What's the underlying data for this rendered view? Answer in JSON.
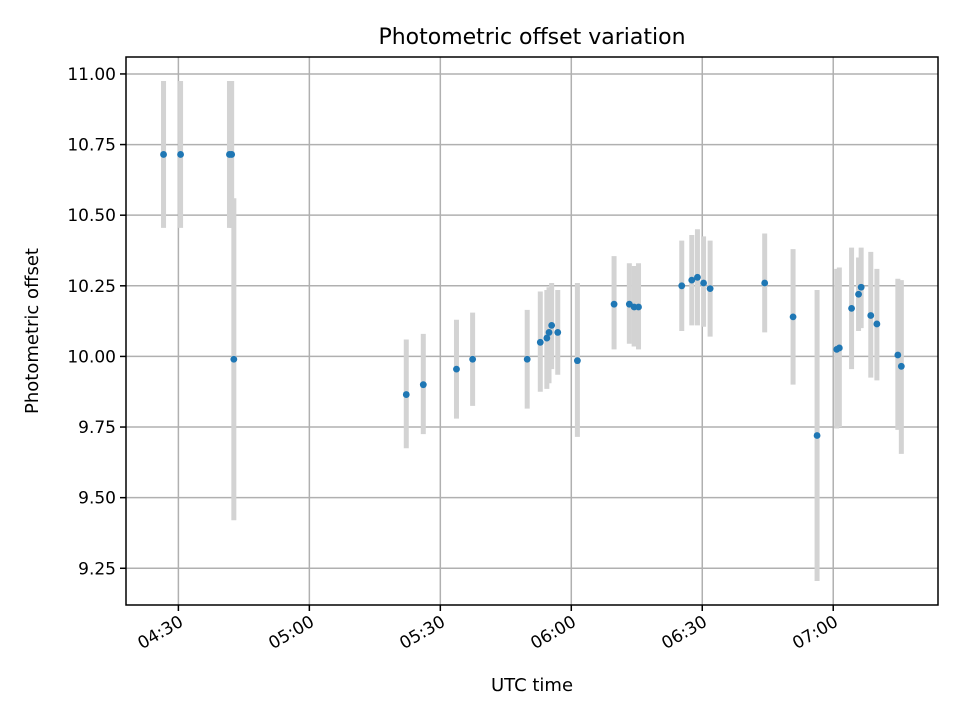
{
  "chart_data": {
    "type": "scatter",
    "title": "Photometric offset variation",
    "xlabel": "UTC time",
    "ylabel": "Photometric offset",
    "x_unit": "minutes_of_day",
    "xlim": [
      "04:18",
      "07:24"
    ],
    "ylim": [
      9.12,
      11.06
    ],
    "x_ticks": [
      "04:30",
      "05:00",
      "05:30",
      "06:00",
      "06:30",
      "07:00"
    ],
    "y_ticks": [
      "9.25",
      "9.50",
      "9.75",
      "10.00",
      "10.25",
      "10.50",
      "10.75",
      "11.00"
    ],
    "grid": true,
    "series": [
      {
        "color": "#1f77b4",
        "errorbar_color": "#d3d3d3",
        "points": [
          {
            "t": "04:26.6",
            "y": 10.715,
            "lo": 10.455,
            "hi": 10.975
          },
          {
            "t": "04:30.5",
            "y": 10.715,
            "lo": 10.455,
            "hi": 10.975
          },
          {
            "t": "04:41.7",
            "y": 10.715,
            "lo": 10.455,
            "hi": 10.975
          },
          {
            "t": "04:42.2",
            "y": 10.715,
            "lo": 10.455,
            "hi": 10.975
          },
          {
            "t": "04:42.7",
            "y": 9.99,
            "lo": 9.42,
            "hi": 10.56
          },
          {
            "t": "05:22.2",
            "y": 9.865,
            "lo": 9.675,
            "hi": 10.06
          },
          {
            "t": "05:26.1",
            "y": 9.9,
            "lo": 9.725,
            "hi": 10.08
          },
          {
            "t": "05:33.7",
            "y": 9.955,
            "lo": 9.78,
            "hi": 10.13
          },
          {
            "t": "05:37.4",
            "y": 9.99,
            "lo": 9.825,
            "hi": 10.155
          },
          {
            "t": "05:49.9",
            "y": 9.99,
            "lo": 9.815,
            "hi": 10.165
          },
          {
            "t": "05:52.9",
            "y": 10.05,
            "lo": 9.875,
            "hi": 10.23
          },
          {
            "t": "05:54.4",
            "y": 10.065,
            "lo": 9.885,
            "hi": 10.235
          },
          {
            "t": "05:54.9",
            "y": 10.085,
            "lo": 9.905,
            "hi": 10.245
          },
          {
            "t": "05:55.5",
            "y": 10.11,
            "lo": 9.955,
            "hi": 10.26
          },
          {
            "t": "05:56.9",
            "y": 10.085,
            "lo": 9.935,
            "hi": 10.235
          },
          {
            "t": "06:01.4",
            "y": 9.985,
            "lo": 9.715,
            "hi": 10.26
          },
          {
            "t": "06:09.8",
            "y": 10.185,
            "lo": 10.025,
            "hi": 10.355
          },
          {
            "t": "06:13.3",
            "y": 10.185,
            "lo": 10.045,
            "hi": 10.33
          },
          {
            "t": "06:14.4",
            "y": 10.175,
            "lo": 10.035,
            "hi": 10.32
          },
          {
            "t": "06:15.4",
            "y": 10.175,
            "lo": 10.025,
            "hi": 10.33
          },
          {
            "t": "06:25.3",
            "y": 10.25,
            "lo": 10.09,
            "hi": 10.41
          },
          {
            "t": "06:27.6",
            "y": 10.27,
            "lo": 10.11,
            "hi": 10.43
          },
          {
            "t": "06:28.9",
            "y": 10.28,
            "lo": 10.11,
            "hi": 10.45
          },
          {
            "t": "06:30.3",
            "y": 10.26,
            "lo": 10.105,
            "hi": 10.425
          },
          {
            "t": "06:31.8",
            "y": 10.24,
            "lo": 10.07,
            "hi": 10.41
          },
          {
            "t": "06:44.3",
            "y": 10.26,
            "lo": 10.085,
            "hi": 10.435
          },
          {
            "t": "06:50.8",
            "y": 10.14,
            "lo": 9.9,
            "hi": 10.38
          },
          {
            "t": "06:56.3",
            "y": 9.72,
            "lo": 9.205,
            "hi": 10.235
          },
          {
            "t": "07:00.8",
            "y": 10.025,
            "lo": 9.745,
            "hi": 10.31
          },
          {
            "t": "07:01.4",
            "y": 10.03,
            "lo": 9.75,
            "hi": 10.315
          },
          {
            "t": "07:04.2",
            "y": 10.17,
            "lo": 9.955,
            "hi": 10.385
          },
          {
            "t": "07:05.8",
            "y": 10.22,
            "lo": 10.09,
            "hi": 10.35
          },
          {
            "t": "07:06.4",
            "y": 10.245,
            "lo": 10.1,
            "hi": 10.385
          },
          {
            "t": "07:08.6",
            "y": 10.145,
            "lo": 9.925,
            "hi": 10.37
          },
          {
            "t": "07:10.0",
            "y": 10.115,
            "lo": 9.915,
            "hi": 10.31
          },
          {
            "t": "07:14.8",
            "y": 10.005,
            "lo": 9.74,
            "hi": 10.275
          },
          {
            "t": "07:15.6",
            "y": 9.965,
            "lo": 9.655,
            "hi": 10.27
          }
        ]
      }
    ]
  }
}
